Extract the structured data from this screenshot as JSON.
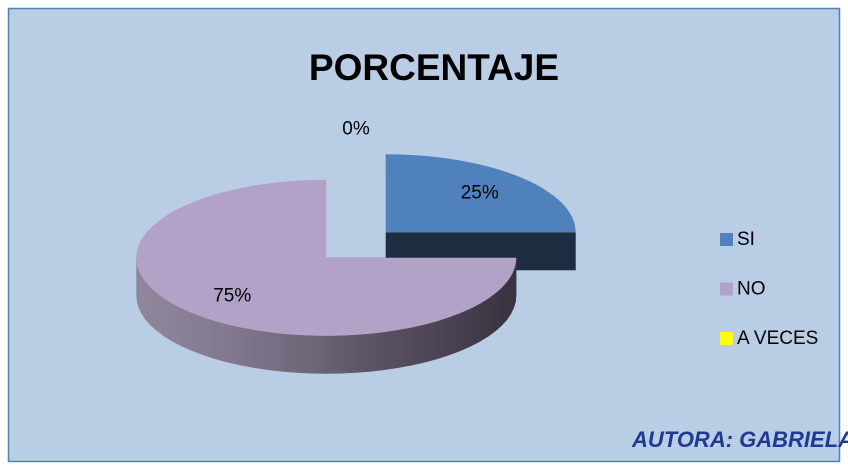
{
  "chart_data": {
    "type": "pie",
    "title": "PORCENTAJE",
    "categories": [
      "SI",
      "NO",
      "A VECES"
    ],
    "values": [
      25,
      75,
      0
    ],
    "value_labels": [
      "25%",
      "75%",
      "0%"
    ],
    "colors": [
      "#4f81bd",
      "#b3a2c7",
      "#ffff00"
    ],
    "legend": "right",
    "annotation": "AUTORA: GABRIELA OSORIO"
  }
}
